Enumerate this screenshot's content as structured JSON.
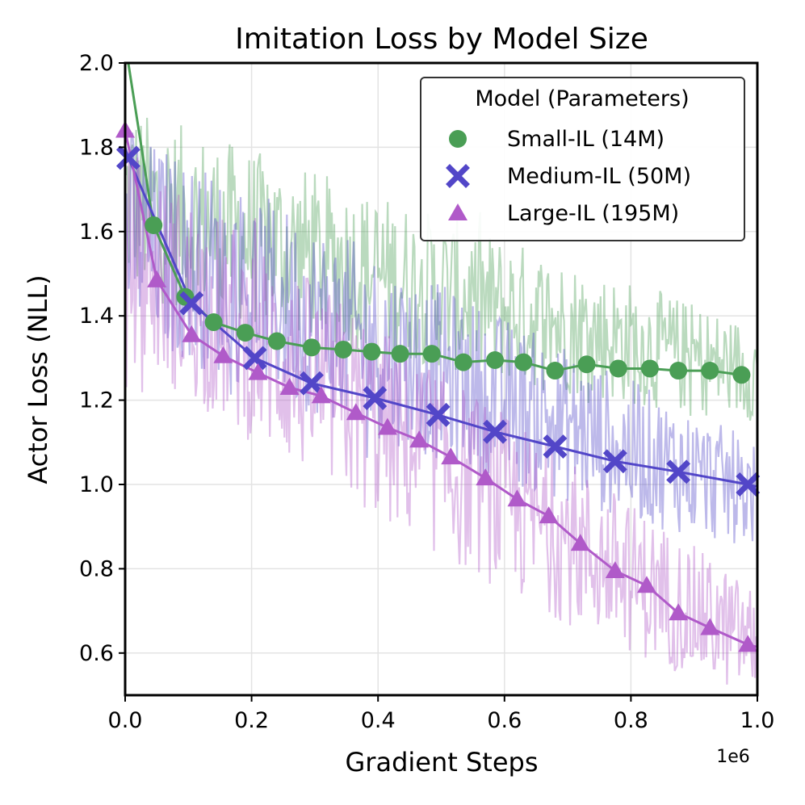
{
  "chart_data": {
    "type": "line",
    "title": "Imitation Loss by Model Size",
    "xlabel": "Gradient Steps",
    "ylabel": "Actor Loss (NLL)",
    "x_offset_label": "1e6",
    "xlim": [
      0.0,
      1.0
    ],
    "ylim": [
      0.5,
      2.0
    ],
    "xticks": [
      0.0,
      0.2,
      0.4,
      0.6,
      0.8,
      1.0
    ],
    "xtick_labels": [
      "0.0",
      "0.2",
      "0.4",
      "0.6",
      "0.8",
      "1.0"
    ],
    "yticks": [
      0.6,
      0.8,
      1.0,
      1.2,
      1.4,
      1.6,
      1.8,
      2.0
    ],
    "ytick_labels": [
      "0.6",
      "0.8",
      "1.0",
      "1.2",
      "1.4",
      "1.6",
      "1.8",
      "2.0"
    ],
    "grid": true,
    "legend": {
      "title": "Model (Parameters)",
      "position": "top-right"
    },
    "series": [
      {
        "name": "Small-IL (14M)",
        "color": "#4a9e55",
        "marker": "circle",
        "x": [
          0.045,
          0.095,
          0.14,
          0.19,
          0.24,
          0.295,
          0.345,
          0.39,
          0.435,
          0.485,
          0.535,
          0.585,
          0.63,
          0.68,
          0.73,
          0.78,
          0.83,
          0.875,
          0.925,
          0.975
        ],
        "y": [
          1.615,
          1.445,
          1.385,
          1.36,
          1.34,
          1.325,
          1.32,
          1.315,
          1.31,
          1.31,
          1.29,
          1.295,
          1.29,
          1.27,
          1.285,
          1.275,
          1.275,
          1.27,
          1.27,
          1.26
        ],
        "noise_upper_start": 1.9,
        "noise_upper_end": 1.38,
        "noise_lower_start": 1.45,
        "noise_lower_end": 1.15
      },
      {
        "name": "Medium-IL (50M)",
        "color": "#5246c8",
        "marker": "x",
        "x": [
          0.005,
          0.105,
          0.205,
          0.295,
          0.395,
          0.495,
          0.585,
          0.68,
          0.775,
          0.875,
          0.985
        ],
        "y": [
          1.775,
          1.43,
          1.3,
          1.24,
          1.205,
          1.165,
          1.125,
          1.09,
          1.055,
          1.03,
          1.0
        ],
        "noise_upper_start": 1.85,
        "noise_upper_end": 1.1,
        "noise_lower_start": 1.35,
        "noise_lower_end": 0.85
      },
      {
        "name": "Large-IL (195M)",
        "color": "#b05ac9",
        "marker": "triangle",
        "x": [
          0.0,
          0.05,
          0.105,
          0.155,
          0.21,
          0.26,
          0.31,
          0.365,
          0.415,
          0.465,
          0.515,
          0.57,
          0.62,
          0.67,
          0.72,
          0.775,
          0.825,
          0.875,
          0.925,
          0.985
        ],
        "y": [
          1.84,
          1.485,
          1.355,
          1.305,
          1.265,
          1.23,
          1.21,
          1.17,
          1.135,
          1.105,
          1.065,
          1.015,
          0.965,
          0.925,
          0.86,
          0.795,
          0.76,
          0.695,
          0.66,
          0.62
        ],
        "noise_upper_start": 1.8,
        "noise_upper_end": 0.75,
        "noise_lower_start": 1.3,
        "noise_lower_end": 0.5
      }
    ]
  }
}
